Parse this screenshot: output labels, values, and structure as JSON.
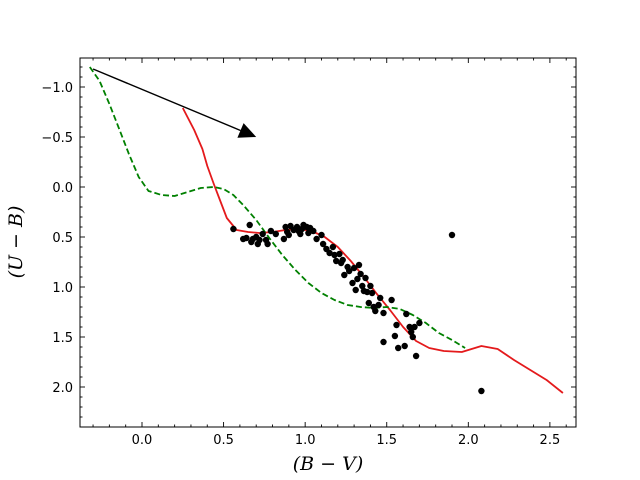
{
  "chart_data": {
    "type": "scatter",
    "title": "",
    "xlabel": "(B − V)",
    "ylabel": "(U − B)",
    "xlim": [
      -0.38,
      2.66
    ],
    "ylim": [
      2.4,
      -1.29
    ],
    "y_inverted": true,
    "grid": false,
    "xticks": [
      0.0,
      0.5,
      1.0,
      1.5,
      2.0,
      2.5
    ],
    "xtick_labels": [
      "0.0",
      "0.5",
      "1.0",
      "1.5",
      "2.0",
      "2.5"
    ],
    "yticks": [
      -1.0,
      -0.5,
      0.0,
      0.5,
      1.0,
      1.5,
      2.0
    ],
    "ytick_labels": [
      "−1.0",
      "−0.5",
      "0.0",
      "0.5",
      "1.0",
      "1.5",
      "2.0"
    ],
    "series": [
      {
        "kind": "points",
        "color": "#000000",
        "points": [
          [
            0.56,
            0.42
          ],
          [
            0.62,
            0.52
          ],
          [
            0.64,
            0.51
          ],
          [
            0.66,
            0.38
          ],
          [
            0.67,
            0.55
          ],
          [
            0.68,
            0.52
          ],
          [
            0.7,
            0.5
          ],
          [
            0.71,
            0.57
          ],
          [
            0.72,
            0.53
          ],
          [
            0.74,
            0.47
          ],
          [
            0.76,
            0.53
          ],
          [
            0.77,
            0.57
          ],
          [
            0.79,
            0.44
          ],
          [
            0.82,
            0.47
          ],
          [
            0.87,
            0.52
          ],
          [
            0.88,
            0.4
          ],
          [
            0.89,
            0.45
          ],
          [
            0.9,
            0.48
          ],
          [
            0.91,
            0.39
          ],
          [
            0.93,
            0.43
          ],
          [
            0.95,
            0.4
          ],
          [
            0.96,
            0.44
          ],
          [
            0.97,
            0.47
          ],
          [
            0.98,
            0.42
          ],
          [
            0.99,
            0.38
          ],
          [
            1.01,
            0.4
          ],
          [
            1.02,
            0.46
          ],
          [
            1.03,
            0.41
          ],
          [
            1.05,
            0.44
          ],
          [
            1.07,
            0.52
          ],
          [
            1.1,
            0.48
          ],
          [
            1.11,
            0.57
          ],
          [
            1.13,
            0.62
          ],
          [
            1.15,
            0.66
          ],
          [
            1.17,
            0.6
          ],
          [
            1.18,
            0.68
          ],
          [
            1.19,
            0.74
          ],
          [
            1.21,
            0.67
          ],
          [
            1.23,
            0.73
          ],
          [
            1.24,
            0.88
          ],
          [
            1.26,
            0.8
          ],
          [
            1.27,
            0.84
          ],
          [
            1.29,
            0.96
          ],
          [
            1.3,
            0.81
          ],
          [
            1.31,
            1.03
          ],
          [
            1.32,
            0.92
          ],
          [
            1.33,
            0.78
          ],
          [
            1.34,
            0.87
          ],
          [
            1.35,
            0.99
          ],
          [
            1.36,
            1.04
          ],
          [
            1.37,
            0.91
          ],
          [
            1.38,
            1.05
          ],
          [
            1.39,
            1.16
          ],
          [
            1.4,
            0.99
          ],
          [
            1.41,
            1.06
          ],
          [
            1.42,
            1.2
          ],
          [
            1.43,
            1.24
          ],
          [
            1.45,
            1.18
          ],
          [
            1.46,
            1.11
          ],
          [
            1.48,
            1.26
          ],
          [
            1.48,
            1.55
          ],
          [
            1.53,
            1.13
          ],
          [
            1.55,
            1.49
          ],
          [
            1.56,
            1.38
          ],
          [
            1.57,
            1.61
          ],
          [
            1.61,
            1.59
          ],
          [
            1.62,
            1.27
          ],
          [
            1.64,
            1.4
          ],
          [
            1.65,
            1.45
          ],
          [
            1.66,
            1.5
          ],
          [
            1.67,
            1.4
          ],
          [
            1.68,
            1.69
          ],
          [
            1.7,
            1.36
          ],
          [
            1.9,
            0.48
          ],
          [
            2.08,
            2.04
          ],
          [
            1.22,
            0.76
          ]
        ]
      },
      {
        "kind": "line",
        "style": "solid",
        "color": "#e41a1c",
        "points": [
          [
            0.25,
            -0.79
          ],
          [
            0.32,
            -0.57
          ],
          [
            0.37,
            -0.38
          ],
          [
            0.4,
            -0.21
          ],
          [
            0.44,
            -0.03
          ],
          [
            0.48,
            0.14
          ],
          [
            0.52,
            0.31
          ],
          [
            0.58,
            0.43
          ],
          [
            0.65,
            0.45
          ],
          [
            0.72,
            0.46
          ],
          [
            0.8,
            0.45
          ],
          [
            0.88,
            0.43
          ],
          [
            0.96,
            0.42
          ],
          [
            1.04,
            0.44
          ],
          [
            1.12,
            0.5
          ],
          [
            1.2,
            0.6
          ],
          [
            1.28,
            0.74
          ],
          [
            1.36,
            0.9
          ],
          [
            1.44,
            1.07
          ],
          [
            1.52,
            1.23
          ],
          [
            1.6,
            1.4
          ],
          [
            1.68,
            1.54
          ],
          [
            1.76,
            1.61
          ],
          [
            1.85,
            1.64
          ],
          [
            1.96,
            1.65
          ],
          [
            2.08,
            1.59
          ],
          [
            2.18,
            1.62
          ],
          [
            2.28,
            1.73
          ],
          [
            2.38,
            1.83
          ],
          [
            2.48,
            1.93
          ],
          [
            2.58,
            2.06
          ]
        ]
      },
      {
        "kind": "line",
        "style": "dashed",
        "color": "#008000",
        "points": [
          [
            -0.32,
            -1.2
          ],
          [
            -0.26,
            -1.06
          ],
          [
            -0.2,
            -0.83
          ],
          [
            -0.14,
            -0.58
          ],
          [
            -0.08,
            -0.33
          ],
          [
            -0.02,
            -0.1
          ],
          [
            0.04,
            0.04
          ],
          [
            0.12,
            0.08
          ],
          [
            0.2,
            0.09
          ],
          [
            0.28,
            0.05
          ],
          [
            0.36,
            0.01
          ],
          [
            0.44,
            0.0
          ],
          [
            0.5,
            0.02
          ],
          [
            0.56,
            0.08
          ],
          [
            0.62,
            0.18
          ],
          [
            0.7,
            0.33
          ],
          [
            0.78,
            0.51
          ],
          [
            0.86,
            0.68
          ],
          [
            0.94,
            0.83
          ],
          [
            1.02,
            0.96
          ],
          [
            1.1,
            1.06
          ],
          [
            1.18,
            1.13
          ],
          [
            1.26,
            1.18
          ],
          [
            1.34,
            1.2
          ],
          [
            1.42,
            1.21
          ],
          [
            1.5,
            1.2
          ],
          [
            1.58,
            1.22
          ],
          [
            1.66,
            1.28
          ],
          [
            1.74,
            1.36
          ],
          [
            1.82,
            1.46
          ],
          [
            1.9,
            1.53
          ],
          [
            1.98,
            1.61
          ]
        ]
      }
    ],
    "annotations": [
      {
        "type": "arrow",
        "color": "#000000",
        "from": [
          -0.3,
          -1.18
        ],
        "to": [
          0.7,
          -0.5
        ]
      }
    ]
  }
}
